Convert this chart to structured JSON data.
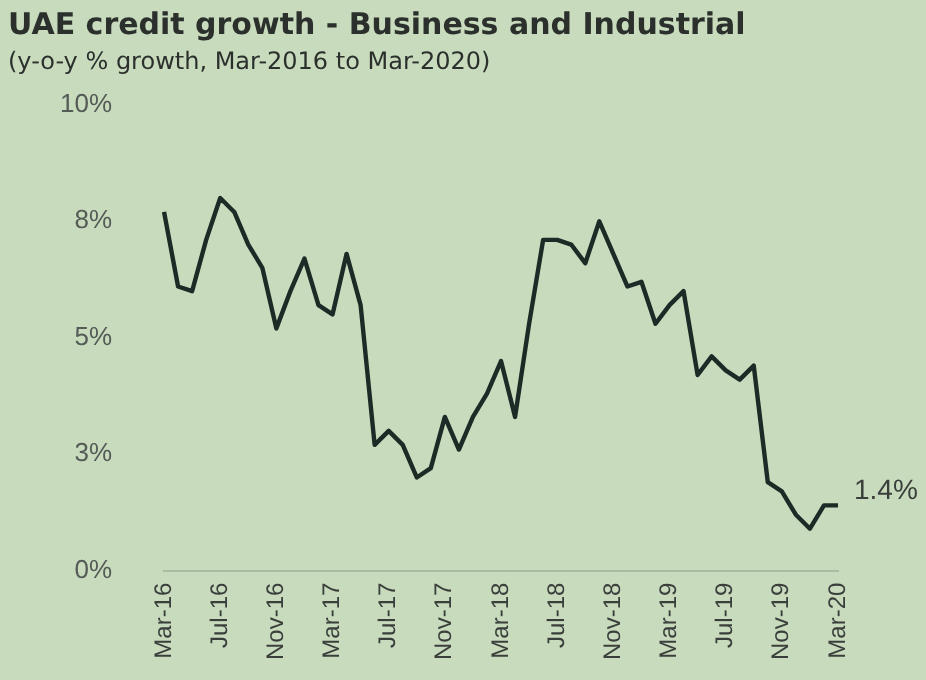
{
  "chart_data": {
    "type": "line",
    "title": "UAE credit growth - Business and Industrial",
    "subtitle": "(y-o-y % growth, Mar-2016 to Mar-2020)",
    "categories": [
      "Mar-16",
      null,
      null,
      null,
      "Jul-16",
      null,
      null,
      null,
      "Nov-16",
      null,
      null,
      null,
      "Mar-17",
      null,
      null,
      null,
      "Jul-17",
      null,
      null,
      null,
      "Nov-17",
      null,
      null,
      null,
      "Mar-18",
      null,
      null,
      null,
      "Jul-18",
      null,
      null,
      null,
      "Nov-18",
      null,
      null,
      null,
      "Mar-19",
      null,
      null,
      null,
      "Jul-19",
      null,
      null,
      null,
      "Nov-19",
      null,
      null,
      null,
      "Mar-20"
    ],
    "series": [
      {
        "color": "#1c2b26",
        "values": [
          7.7,
          6.1,
          6.0,
          7.1,
          8.0,
          7.7,
          7.0,
          6.5,
          5.2,
          6.0,
          6.7,
          5.7,
          5.5,
          6.8,
          5.7,
          2.7,
          3.0,
          2.7,
          2.0,
          2.2,
          3.3,
          2.6,
          3.3,
          3.8,
          4.5,
          3.3,
          5.3,
          7.1,
          7.1,
          7.0,
          6.6,
          7.5,
          6.8,
          6.1,
          6.2,
          5.3,
          5.7,
          6.0,
          4.2,
          4.6,
          4.3,
          4.1,
          4.4,
          1.9,
          1.7,
          1.2,
          0.9,
          1.4,
          1.4
        ]
      }
    ],
    "ylim": [
      0,
      10
    ],
    "yticks": [
      {
        "value": 0,
        "label": "0%"
      },
      {
        "value": 2.5,
        "label": "3%"
      },
      {
        "value": 5,
        "label": "5%"
      },
      {
        "value": 7.5,
        "label": "8%"
      },
      {
        "value": 10,
        "label": "10%"
      }
    ],
    "annotations": [
      {
        "text": "1.4%",
        "x": "Mar-20",
        "y": 1.4
      }
    ],
    "grid": false,
    "legend": false,
    "marker": "none",
    "line_style": "solid"
  }
}
